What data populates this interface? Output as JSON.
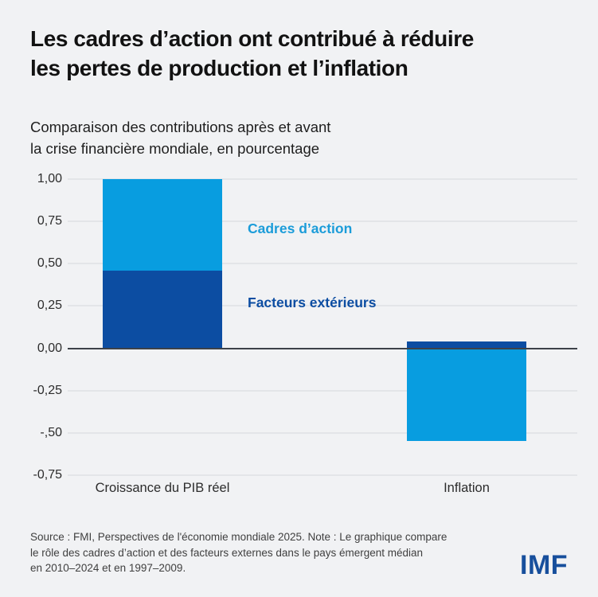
{
  "page": {
    "background_color": "#f1f2f4"
  },
  "header": {
    "title_lines": [
      "Les cadres d’action ont contribué à réduire",
      "les pertes de production et l’inflation"
    ],
    "subtitle_lines": [
      "Comparaison des contributions après et avant",
      "la crise financière mondiale, en pourcentage"
    ]
  },
  "chart_data": {
    "type": "bar",
    "stacked": true,
    "title": "Les cadres d’action ont contribué à réduire les pertes de production et l’inflation",
    "subtitle": "Comparaison des contributions après et avant la crise financière mondiale, en pourcentage",
    "categories": [
      "Croissance du PIB réel",
      "Inflation"
    ],
    "series": [
      {
        "name": "Facteurs extérieurs",
        "color": "#0c4da2",
        "values": [
          0.46,
          0.04
        ]
      },
      {
        "name": "Cadres d’action",
        "color": "#089de0",
        "values": [
          0.54,
          -0.55
        ]
      }
    ],
    "ylim": [
      -0.75,
      1.0
    ],
    "y_ticks": [
      {
        "value": 1.0,
        "label": "1,00"
      },
      {
        "value": 0.75,
        "label": "0,75"
      },
      {
        "value": 0.5,
        "label": "0,50"
      },
      {
        "value": 0.25,
        "label": "0,25"
      },
      {
        "value": 0.0,
        "label": "0,00"
      },
      {
        "value": -0.25,
        "label": "-0,25"
      },
      {
        "value": -0.5,
        "label": "-,50"
      },
      {
        "value": -0.75,
        "label": "-0,75"
      }
    ],
    "grid": true,
    "legend_position": "inline-annotations",
    "annotations": [
      {
        "text": "Cadres d’action",
        "color": "#1b9cd9"
      },
      {
        "text": "Facteurs extérieurs",
        "color": "#0c4da2"
      }
    ]
  },
  "footer": {
    "note_lines": [
      "Source : FMI, Perspectives de l'économie mondiale 2025. Note : Le graphique compare",
      "le rôle des cadres d’action et des facteurs externes dans le pays émergent médian",
      "en 2010–2024 et en 1997–2009."
    ],
    "logo_text": "IMF",
    "logo_color": "#174f9c"
  }
}
